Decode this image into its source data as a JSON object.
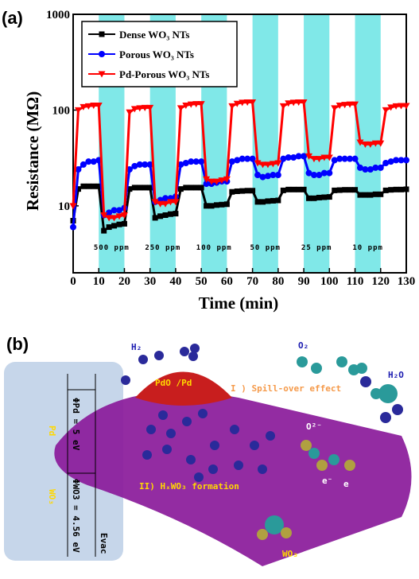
{
  "chart_data": {
    "type": "line",
    "panel_label": "(a)",
    "xlabel": "Time (min)",
    "ylabel": "Resistance (MΩ)",
    "xlim": [
      0,
      130
    ],
    "xticks": [
      0,
      10,
      20,
      30,
      40,
      50,
      60,
      70,
      80,
      90,
      100,
      110,
      120,
      130
    ],
    "ylim": [
      2,
      1000
    ],
    "yticks": [
      10,
      100,
      1000
    ],
    "log_y": true,
    "legend": "upper left",
    "exposures": [
      {
        "start": 10,
        "end": 20,
        "label": "500 ppm"
      },
      {
        "start": 30,
        "end": 40,
        "label": "250 ppm"
      },
      {
        "start": 50,
        "end": 60,
        "label": "100 ppm"
      },
      {
        "start": 70,
        "end": 80,
        "label": "50 ppm"
      },
      {
        "start": 90,
        "end": 100,
        "label": "25 ppm"
      },
      {
        "start": 110,
        "end": 120,
        "label": "10 ppm"
      }
    ],
    "band_color": "#80e8e8",
    "x": [
      0,
      2,
      4,
      6,
      8,
      10,
      12,
      14,
      16,
      18,
      20,
      22,
      24,
      26,
      28,
      30,
      32,
      34,
      36,
      38,
      40,
      42,
      44,
      46,
      48,
      50,
      52,
      54,
      56,
      58,
      60,
      62,
      64,
      66,
      68,
      70,
      72,
      74,
      76,
      78,
      80,
      82,
      84,
      86,
      88,
      90,
      92,
      94,
      96,
      98,
      100,
      102,
      104,
      106,
      108,
      110,
      112,
      114,
      116,
      118,
      120,
      122,
      124,
      126,
      128,
      130
    ],
    "series": [
      {
        "name": "Dense WO₃ NTs",
        "color": "#000000",
        "marker": "square",
        "values": [
          7,
          15,
          16,
          16,
          16,
          16,
          5.5,
          6,
          6.2,
          6.4,
          6.5,
          15,
          15.5,
          15.5,
          15.5,
          15.5,
          7.5,
          7.8,
          8,
          8.2,
          8.3,
          15,
          15.5,
          15.5,
          15.5,
          15.5,
          10,
          10,
          10.2,
          10.3,
          10.4,
          14,
          14.2,
          14.3,
          14.4,
          14.4,
          11,
          11,
          11.2,
          11.3,
          11.4,
          14.5,
          14.8,
          14.8,
          14.8,
          14.8,
          12,
          12,
          12.2,
          12.3,
          12.4,
          14.5,
          14.6,
          14.7,
          14.7,
          14.7,
          13,
          13,
          13,
          13.2,
          13.2,
          14.5,
          14.7,
          14.8,
          14.8,
          14.9
        ]
      },
      {
        "name": "Porous WO₃ NTs",
        "color": "#0000ff",
        "marker": "circle",
        "values": [
          6,
          24,
          27,
          29,
          29,
          30,
          8,
          8.5,
          9,
          9,
          9.5,
          24,
          26,
          27,
          27,
          27,
          11,
          11.5,
          12,
          12,
          12.5,
          27,
          28,
          29,
          29,
          29,
          17,
          17,
          17.5,
          18,
          18,
          29,
          30,
          31,
          31,
          31,
          21,
          20,
          20.5,
          21,
          21,
          31,
          32,
          32,
          33,
          33,
          22,
          21,
          21,
          22,
          22,
          30,
          31,
          31,
          31,
          31,
          25,
          24,
          24,
          25,
          25,
          28,
          29,
          30,
          30,
          30
        ]
      },
      {
        "name": "Pd-Porous WO₃ NTs",
        "color": "#ff0000",
        "marker": "triangle",
        "values": [
          10,
          100,
          108,
          110,
          112,
          112,
          8,
          7.5,
          7.5,
          7.8,
          8,
          95,
          103,
          105,
          106,
          106,
          11,
          10.5,
          10.5,
          11,
          11,
          105,
          112,
          115,
          116,
          116,
          19,
          18,
          18,
          18.5,
          19,
          110,
          117,
          120,
          121,
          121,
          28,
          27,
          27,
          27.5,
          28,
          110,
          118,
          120,
          121,
          121,
          33,
          31,
          31,
          32,
          32,
          105,
          112,
          114,
          115,
          115,
          46,
          44,
          44,
          45,
          45,
          100,
          107,
          110,
          111,
          111
        ]
      }
    ]
  },
  "diagram": {
    "panel_label": "(b)",
    "h2": "H₂",
    "o2": "O₂",
    "h2o": "H₂O",
    "pdo": "PdO /Pd",
    "spill": "I ) Spill-over effect",
    "o2minus": "O²⁻",
    "e1": "e⁻",
    "e2": "e",
    "formation": "II) HₓWO₃ formation",
    "wo3": "WO₃",
    "pd": "Pd",
    "wo3_side": "WO₃",
    "phi_pd": "ΦPd = 5 eV",
    "phi_wo3": "ΦWO3 = 4.56 eV",
    "evac": "Evac"
  }
}
